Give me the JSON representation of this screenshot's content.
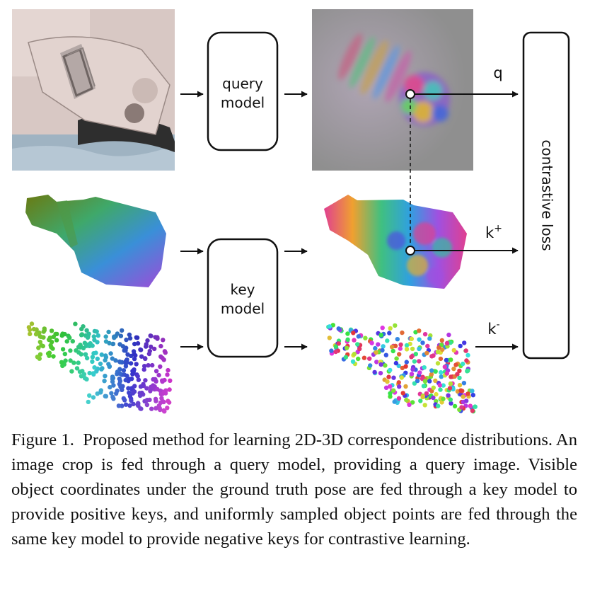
{
  "diagram": {
    "query_model_label": [
      "query",
      "model"
    ],
    "key_model_label": [
      "key",
      "model"
    ],
    "loss_label": "contrastive loss",
    "q_label": "q",
    "k_pos_label": "k",
    "k_pos_sup": "+",
    "k_neg_label": "k",
    "k_neg_sup": "-"
  },
  "caption": {
    "figure_label": "Figure 1.",
    "text": "Proposed method for learning 2D-3D correspondence distributions. An image crop is fed through a query model, providing a query image. Visible object coordinates under the ground truth pose are fed through a key model to provide positive keys, and uniformly sampled object points are fed through the same key model to provide negative keys for contrastive learning."
  }
}
